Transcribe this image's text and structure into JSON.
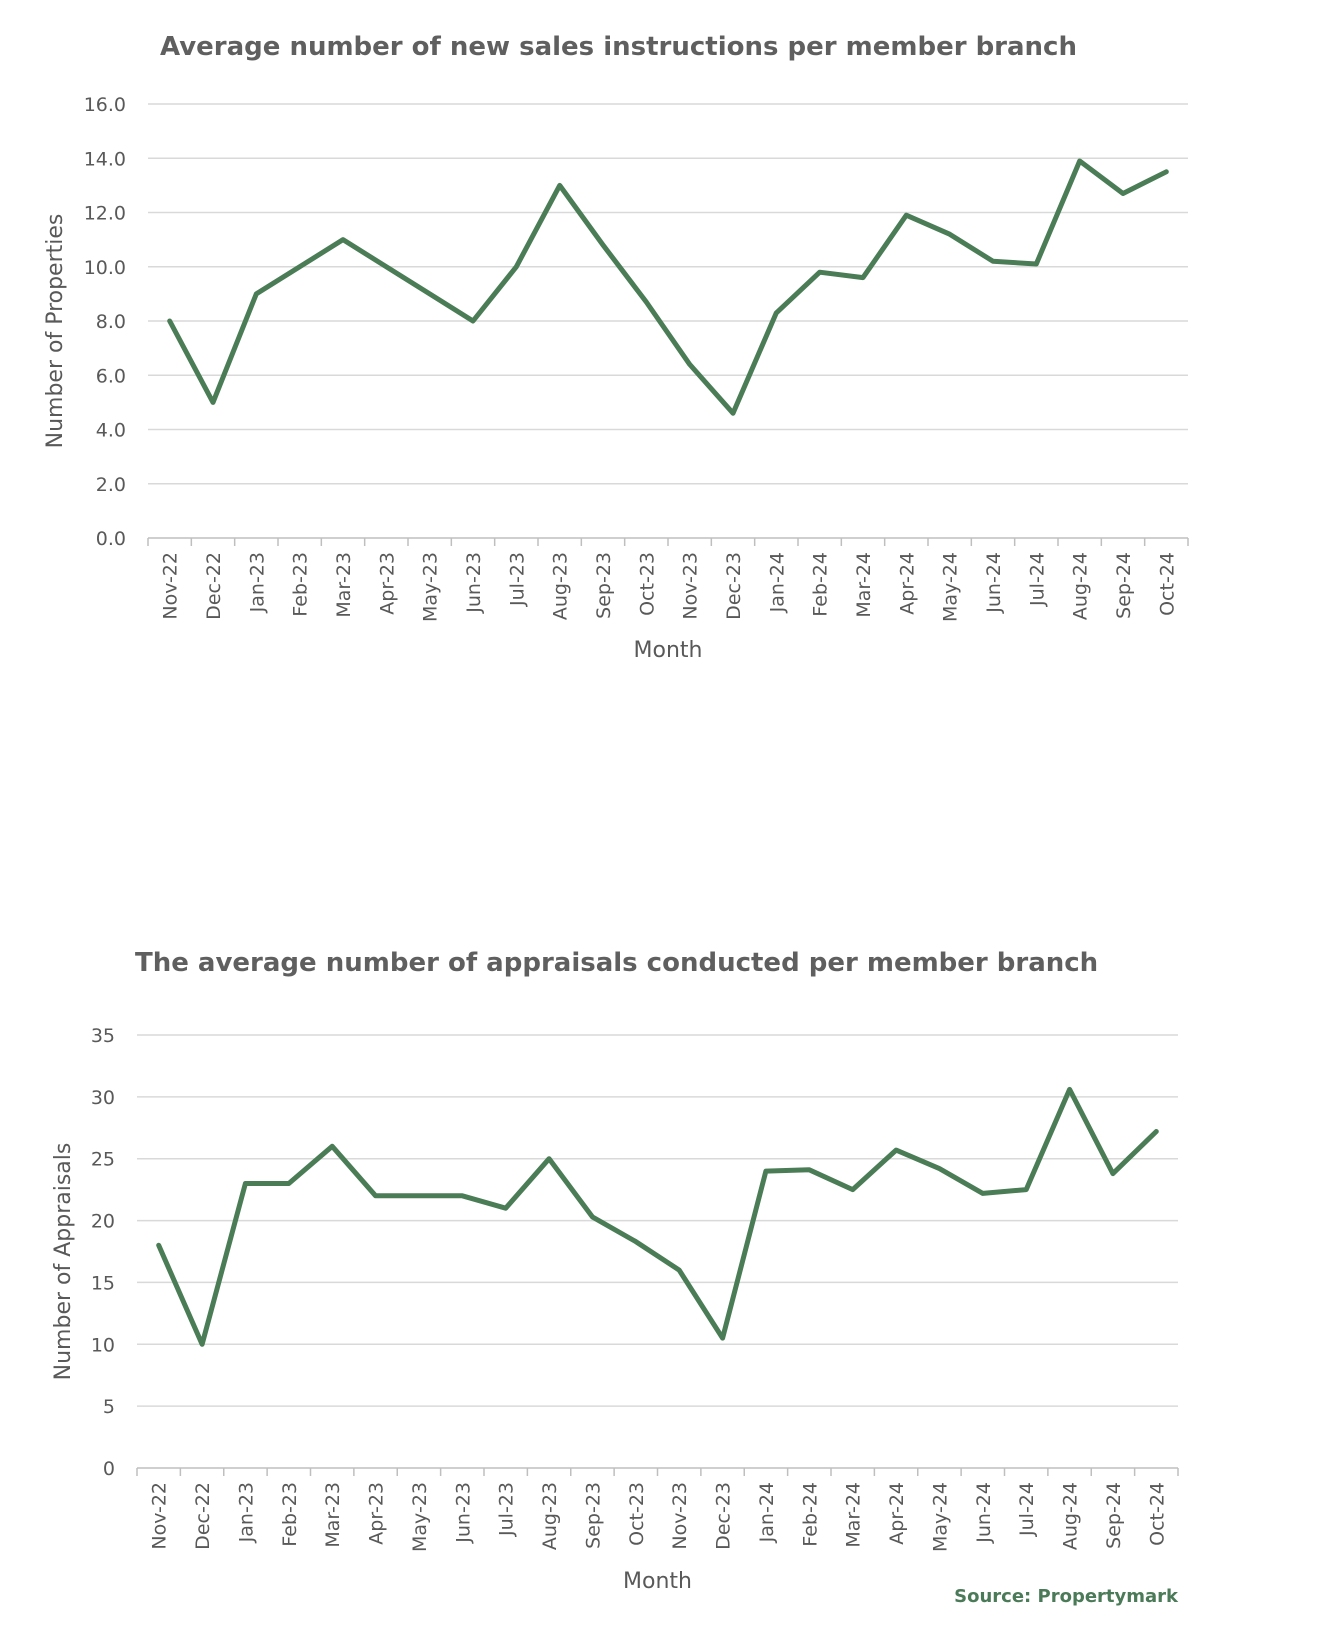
{
  "colors": {
    "series": "#4a7c56",
    "source": "#4a7a57"
  },
  "source": "Source: Propertymark",
  "chart_data": [
    {
      "type": "line",
      "title": "Average number of new sales instructions per member branch",
      "xlabel": "Month",
      "ylabel": "Number of Properties",
      "ylim": [
        0,
        16
      ],
      "yticks": [
        "0.0",
        "2.0",
        "4.0",
        "6.0",
        "8.0",
        "10.0",
        "12.0",
        "14.0",
        "16.0"
      ],
      "grid": true,
      "categories": [
        "Nov-22",
        "Dec-22",
        "Jan-23",
        "Feb-23",
        "Mar-23",
        "Apr-23",
        "May-23",
        "Jun-23",
        "Jul-23",
        "Aug-23",
        "Sep-23",
        "Oct-23",
        "Nov-23",
        "Dec-23",
        "Jan-24",
        "Feb-24",
        "Mar-24",
        "Apr-24",
        "May-24",
        "Jun-24",
        "Jul-24",
        "Aug-24",
        "Sep-24",
        "Oct-24"
      ],
      "values": [
        8.0,
        5.0,
        9.0,
        10.0,
        11.0,
        10.0,
        9.0,
        8.0,
        10.0,
        13.0,
        10.8,
        8.7,
        6.4,
        4.6,
        8.3,
        9.8,
        9.6,
        11.9,
        11.2,
        10.2,
        10.1,
        13.9,
        12.7,
        13.5
      ]
    },
    {
      "type": "line",
      "title": "The average number of appraisals conducted per member branch",
      "xlabel": "Month",
      "ylabel": "Number of Appraisals",
      "ylim": [
        0,
        35
      ],
      "yticks": [
        "0",
        "5",
        "10",
        "15",
        "20",
        "25",
        "30",
        "35"
      ],
      "grid": true,
      "categories": [
        "Nov-22",
        "Dec-22",
        "Jan-23",
        "Feb-23",
        "Mar-23",
        "Apr-23",
        "May-23",
        "Jun-23",
        "Jul-23",
        "Aug-23",
        "Sep-23",
        "Oct-23",
        "Nov-23",
        "Dec-23",
        "Jan-24",
        "Feb-24",
        "Mar-24",
        "Apr-24",
        "May-24",
        "Jun-24",
        "Jul-24",
        "Aug-24",
        "Sep-24",
        "Oct-24"
      ],
      "values": [
        18,
        10,
        23,
        23,
        26,
        22,
        22,
        22,
        21,
        25,
        20.3,
        18.3,
        16,
        10.5,
        24,
        24.1,
        22.5,
        25.7,
        24.2,
        22.2,
        22.5,
        30.6,
        23.8,
        27.2
      ]
    }
  ]
}
